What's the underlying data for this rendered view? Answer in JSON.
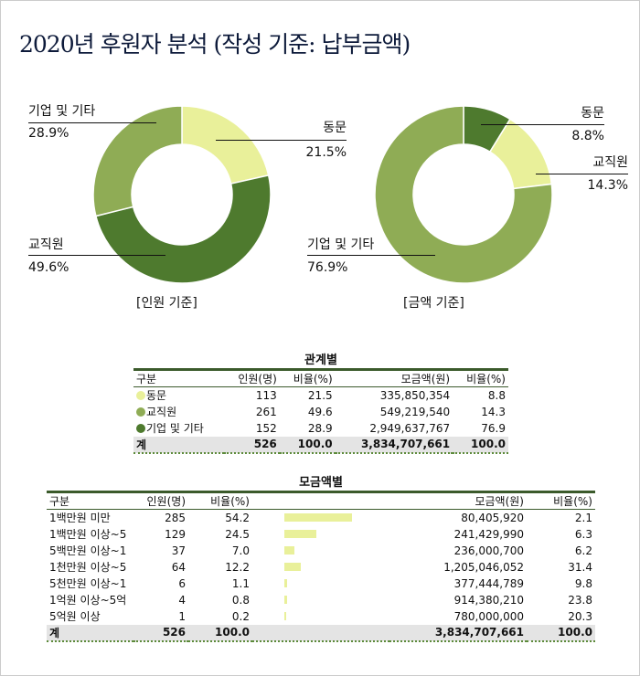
{
  "title": "2020년 후원자 분석 (작성 기준: 납부금액)",
  "colors": {
    "light": "#e9f09a",
    "mid": "#8fac55",
    "dark": "#4e7a2e",
    "rule": "#3b5a2b"
  },
  "chart_data": [
    {
      "type": "pie",
      "style": "donut",
      "caption": "[인원 기준]",
      "slices": [
        {
          "label": "동문",
          "value": 21.5,
          "display": "21.5%",
          "color": "#e9f09a"
        },
        {
          "label": "교직원",
          "value": 49.6,
          "display": "49.6%",
          "color": "#4e7a2e"
        },
        {
          "label": "기업 및 기타",
          "value": 28.9,
          "display": "28.9%",
          "color": "#8fac55"
        }
      ]
    },
    {
      "type": "pie",
      "style": "donut",
      "caption": "[금액 기준]",
      "slices": [
        {
          "label": "동문",
          "value": 8.8,
          "display": "8.8%",
          "color": "#4e7a2e"
        },
        {
          "label": "교직원",
          "value": 14.3,
          "display": "14.3%",
          "color": "#e9f09a"
        },
        {
          "label": "기업 및 기타",
          "value": 76.9,
          "display": "76.9%",
          "color": "#8fac55"
        }
      ]
    },
    {
      "type": "table",
      "title": "관계별",
      "headers": [
        "구분",
        "인원(명)",
        "비율(%)",
        "모금액(원)",
        "비율(%)"
      ],
      "rows": [
        {
          "label": "동문",
          "color": "#e9f09a",
          "count": "113",
          "pct": "21.5",
          "amount": "335,850,354",
          "amt_pct": "8.8"
        },
        {
          "label": "교직원",
          "color": "#8fac55",
          "count": "261",
          "pct": "49.6",
          "amount": "549,219,540",
          "amt_pct": "14.3"
        },
        {
          "label": "기업 및 기타",
          "color": "#4e7a2e",
          "count": "152",
          "pct": "28.9",
          "amount": "2,949,637,767",
          "amt_pct": "76.9"
        }
      ],
      "total": {
        "label": "계",
        "count": "526",
        "pct": "100.0",
        "amount": "3,834,707,661",
        "amt_pct": "100.0"
      }
    },
    {
      "type": "table",
      "title": "모금액별",
      "headers": [
        "구분",
        "인원(명)",
        "비율(%)",
        "모금액(원)",
        "비율(%)"
      ],
      "rows": [
        {
          "label": "1백만원 미만",
          "count": "285",
          "pct": "54.2",
          "bar": 54.2,
          "amount": "80,405,920",
          "amt_pct": "2.1"
        },
        {
          "label": "1백만원 이상~5",
          "count": "129",
          "pct": "24.5",
          "bar": 24.5,
          "amount": "241,429,990",
          "amt_pct": "6.3"
        },
        {
          "label": "5백만원 이상~1",
          "count": "37",
          "pct": "7.0",
          "bar": 7.0,
          "amount": "236,000,700",
          "amt_pct": "6.2"
        },
        {
          "label": "1천만원 이상~5",
          "count": "64",
          "pct": "12.2",
          "bar": 12.2,
          "amount": "1,205,046,052",
          "amt_pct": "31.4"
        },
        {
          "label": "5천만원 이상~1",
          "count": "6",
          "pct": "1.1",
          "bar": 1.1,
          "amount": "377,444,789",
          "amt_pct": "9.8"
        },
        {
          "label": "1억원 이상~5억",
          "count": "4",
          "pct": "0.8",
          "bar": 0.8,
          "amount": "914,380,210",
          "amt_pct": "23.8"
        },
        {
          "label": "5억원 이상",
          "count": "1",
          "pct": "0.2",
          "bar": 0.2,
          "amount": "780,000,000",
          "amt_pct": "20.3"
        }
      ],
      "total": {
        "label": "계",
        "count": "526",
        "pct": "100.0",
        "amount": "3,834,707,661",
        "amt_pct": "100.0"
      }
    }
  ]
}
